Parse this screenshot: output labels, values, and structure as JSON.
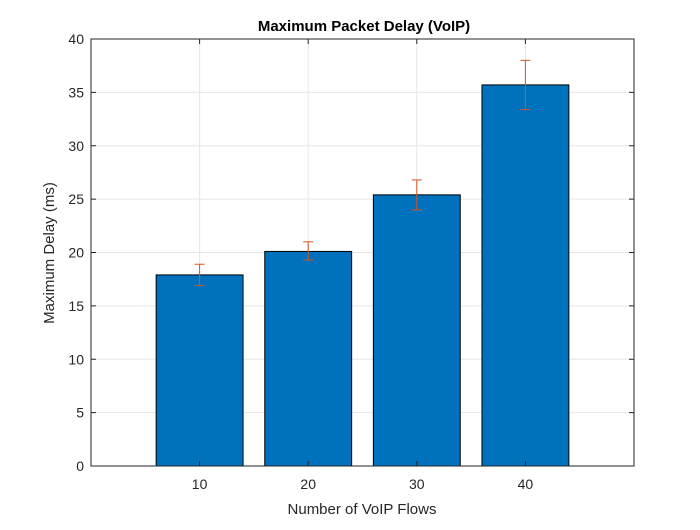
{
  "chart_data": {
    "type": "bar",
    "title": "Maximum Packet Delay (VoIP)",
    "xlabel": "Number of VoIP Flows",
    "ylabel": "Maximum Delay (ms)",
    "categories": [
      "10",
      "20",
      "30",
      "40"
    ],
    "x": [
      10,
      20,
      30,
      40
    ],
    "values": [
      17.9,
      20.1,
      25.4,
      35.7
    ],
    "error_low": [
      16.9,
      19.3,
      24.0,
      33.4
    ],
    "error_high": [
      18.9,
      21.0,
      26.8,
      38.0
    ],
    "xlim": [
      0,
      50
    ],
    "ylim": [
      0,
      40
    ],
    "yticks": [
      0,
      5,
      10,
      15,
      20,
      25,
      30,
      35,
      40
    ],
    "grid": true,
    "legend": "none",
    "colors": {
      "bar": "#0072BD",
      "bar_edge": "#000000",
      "error": "#D95319",
      "grid": "#e6e6e6",
      "axis": "#262626"
    }
  }
}
